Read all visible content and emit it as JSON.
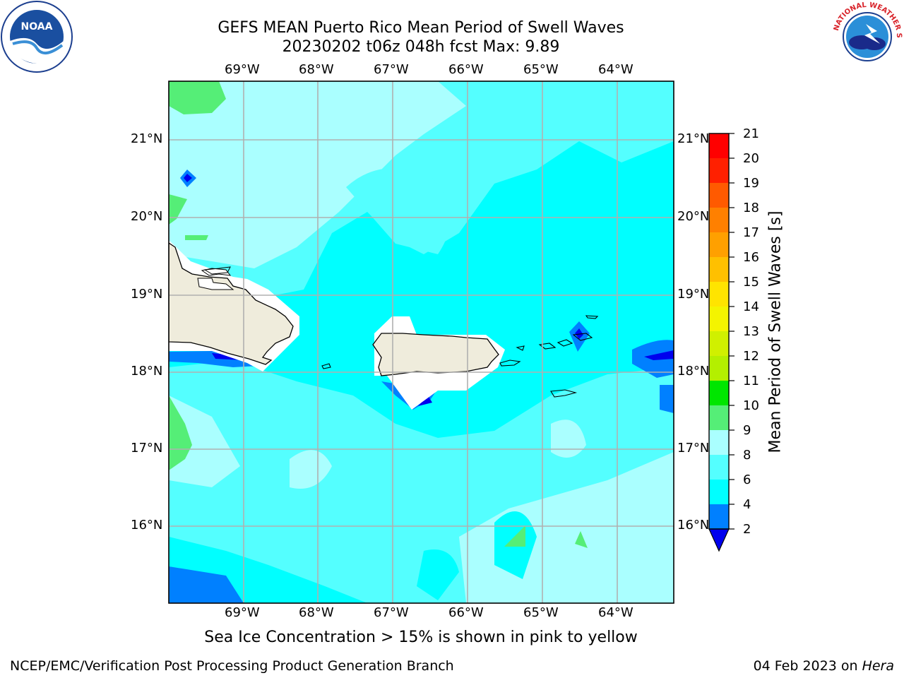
{
  "header": {
    "title_line1": "GEFS MEAN Puerto Rico Mean Period of Swell Waves",
    "title_line2": "20230202 t06z 048h fcst   Max: 9.89"
  },
  "map": {
    "longitude_labels": [
      "69°W",
      "68°W",
      "67°W",
      "66°W",
      "65°W",
      "64°W"
    ],
    "latitude_labels": [
      "21°N",
      "20°N",
      "19°N",
      "18°N",
      "17°N",
      "16°N"
    ],
    "land_color": "#efecdc",
    "ocean_color": "#00ffff"
  },
  "colorbar": {
    "title": "Mean Period of Swell Waves [s]",
    "tick_labels": [
      "21",
      "20",
      "19",
      "18",
      "17",
      "16",
      "15",
      "14",
      "13",
      "12",
      "11",
      "10",
      "9",
      "8",
      "6",
      "4",
      "2"
    ],
    "colors": [
      "#ff0000",
      "#ff2000",
      "#ff5a00",
      "#ff8000",
      "#ffa000",
      "#ffc000",
      "#ffe400",
      "#f4f400",
      "#d0f000",
      "#b4ef00",
      "#54d400",
      "#00e600",
      "#00ee00",
      "#55ee77",
      "#aaffff",
      "#54ffff",
      "#00ffff",
      "#0080ff",
      "#0000ee"
    ]
  },
  "footer": {
    "note": "Sea Ice Concentration > 15% is shown in pink to yellow",
    "credit_left": "NCEP/EMC/Verification Post Processing Product Generation Branch",
    "credit_date": "04 Feb 2023 on ",
    "credit_host": "Hera"
  },
  "logos": {
    "noaa_text": "NOAA",
    "nws_text": "NATIONAL WEATHER SERVICE"
  }
}
